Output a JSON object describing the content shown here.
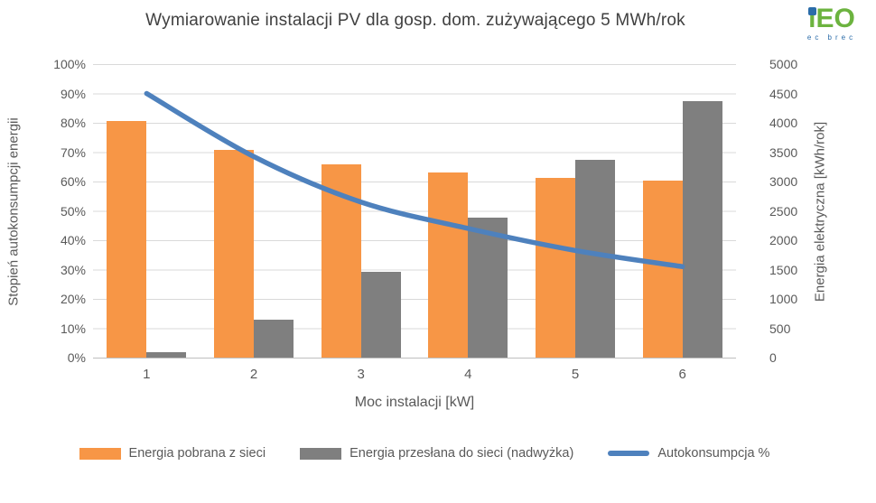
{
  "title": "Wymiarowanie instalacji PV dla gosp. dom. zużywającego 5 MWh/rok",
  "logo": {
    "i": "i",
    "eo": "EO",
    "sub": "ec brec",
    "green": "#6CB33F",
    "blue": "#2B6CA9"
  },
  "chart_data": {
    "type": "bar+line combo",
    "title": "Wymiarowanie instalacji PV dla gosp. dom. zużywającego 5 MWh/rok",
    "categories": [
      "1",
      "2",
      "3",
      "4",
      "5",
      "6"
    ],
    "series": [
      {
        "name": "Energia pobrana z sieci",
        "type": "bar",
        "axis": "right",
        "color": "#F79646",
        "values_kwh": [
          4030,
          3540,
          3290,
          3150,
          3065,
          3010
        ]
      },
      {
        "name": "Energia przesłana do sieci (nadwyżka)",
        "type": "bar",
        "axis": "right",
        "color": "#7F7F7F",
        "values_kwh": [
          100,
          645,
          1465,
          2385,
          3365,
          4370
        ]
      },
      {
        "name": "Autokonsumpcja %",
        "type": "line",
        "axis": "left",
        "color": "#4E81BD",
        "values_percent": [
          90,
          68.5,
          53,
          44,
          36.5,
          31
        ]
      }
    ],
    "x_axis": {
      "title": "Moc instalacji [kW]",
      "labels": [
        "1",
        "2",
        "3",
        "4",
        "5",
        "6"
      ]
    },
    "left_axis": {
      "title": "Stopień autokonsumpcji energii",
      "min": 0,
      "max": 100,
      "unit": "%",
      "ticks": [
        "100%",
        "90%",
        "80%",
        "70%",
        "60%",
        "50%",
        "40%",
        "30%",
        "20%",
        "10%",
        "0%"
      ]
    },
    "right_axis": {
      "title": "Energia elektryczna [kWh/rok]",
      "min": 0,
      "max": 5000,
      "unit": "kWh/rok",
      "ticks": [
        "5000",
        "4500",
        "4000",
        "3500",
        "3000",
        "2500",
        "2000",
        "1500",
        "1000",
        "500",
        "0"
      ]
    },
    "legend_position": "bottom",
    "grid": "horizontal",
    "gridline_color": "#D9D9D9",
    "axis_line_color": "#BFBFBF",
    "text_color": "#595959",
    "title_color": "#404040"
  }
}
